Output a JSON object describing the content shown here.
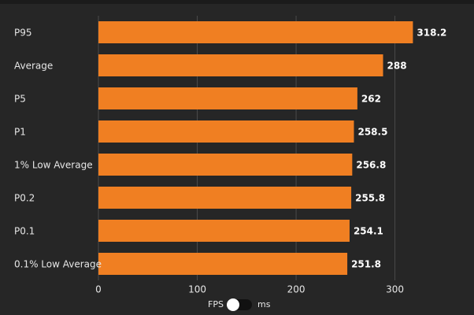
{
  "chart_data": {
    "type": "hbar",
    "categories": [
      "P95",
      "Average",
      "P5",
      "P1",
      "1% Low Average",
      "P0.2",
      "P0.1",
      "0.1% Low Average"
    ],
    "values": [
      318.2,
      288,
      262,
      258.5,
      256.8,
      255.8,
      254.1,
      251.8
    ],
    "color": "#f07f22",
    "xlim": [
      0,
      380
    ],
    "xticks": [
      0,
      100,
      200,
      300
    ],
    "grid": true
  },
  "toggle": {
    "left": "FPS",
    "right": "ms"
  }
}
